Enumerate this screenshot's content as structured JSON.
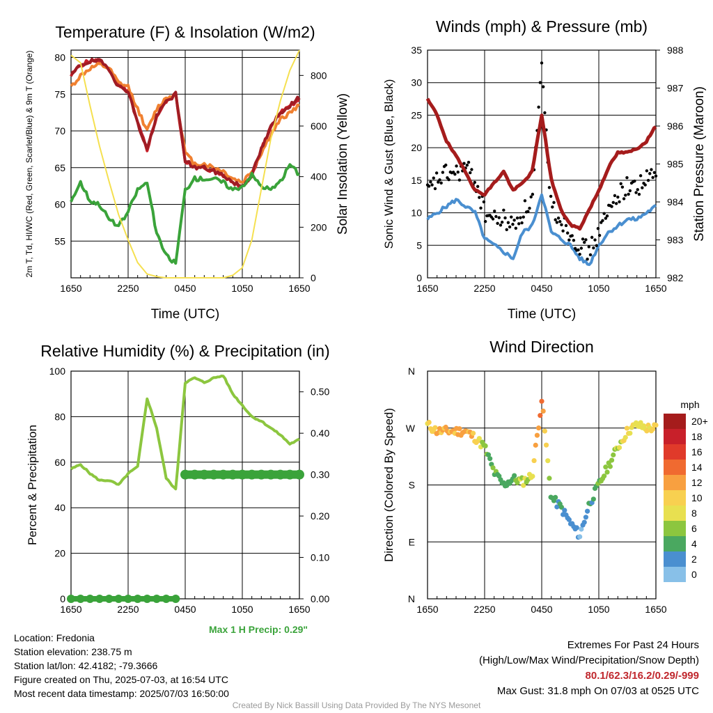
{
  "chart_data": [
    {
      "type": "line",
      "title": "Temperature (F) & Insolation (W/m2)",
      "xlabel": "Time (UTC)",
      "ylabel_left": "2m T, Td, HI/WC (Red, Green, Scarlet/Blue) & 9m T (Orange)",
      "ylabel_right": "Solar Insolation (Yellow)",
      "x_ticks": [
        "1650",
        "2250",
        "0450",
        "1050",
        "1650"
      ],
      "ylim": [
        50,
        81
      ],
      "y_ticks": [
        55,
        60,
        65,
        70,
        75,
        80
      ],
      "y2lim": [
        0,
        900
      ],
      "y2_ticks": [
        0,
        200,
        400,
        600,
        800
      ],
      "x": [
        0,
        1,
        2,
        3,
        4,
        5,
        6,
        7,
        8,
        9,
        10,
        11,
        12,
        13,
        14,
        15,
        16,
        17,
        18,
        19,
        20,
        21,
        22,
        23,
        24
      ],
      "series": [
        {
          "name": "2m T",
          "color": "#c8202a",
          "axis": "left",
          "values": [
            77.5,
            79.0,
            79.5,
            79.5,
            78.5,
            76.0,
            75.5,
            71.0,
            67.5,
            72.0,
            74.0,
            75.0,
            66.0,
            65.0,
            65.0,
            64.5,
            64.0,
            63.0,
            62.5,
            64.0,
            67.5,
            70.5,
            72.5,
            73.5,
            74.0
          ]
        },
        {
          "name": "9m T",
          "color": "#f08030",
          "axis": "left",
          "values": [
            76.0,
            77.5,
            78.5,
            79.0,
            78.5,
            76.5,
            76.0,
            73.0,
            70.0,
            73.0,
            74.5,
            75.0,
            67.0,
            65.5,
            65.5,
            65.0,
            64.5,
            63.5,
            63.0,
            64.5,
            67.0,
            69.5,
            71.5,
            72.5,
            73.5
          ]
        },
        {
          "name": "HI/WC",
          "color": "#a01c24",
          "axis": "left",
          "values": [
            77.5,
            79.0,
            79.5,
            79.5,
            78.5,
            76.0,
            75.5,
            71.0,
            67.5,
            72.0,
            74.0,
            75.0,
            66.0,
            65.0,
            65.0,
            64.5,
            64.0,
            63.0,
            62.5,
            64.0,
            67.5,
            70.5,
            72.5,
            73.5,
            74.5
          ]
        },
        {
          "name": "Td",
          "color": "#3aa33a",
          "axis": "left",
          "values": [
            60.5,
            63.0,
            60.5,
            60.0,
            58.0,
            57.0,
            59.0,
            62.0,
            63.0,
            56.0,
            53.0,
            52.0,
            62.0,
            63.5,
            63.5,
            63.5,
            63.0,
            62.0,
            62.5,
            64.0,
            62.5,
            62.0,
            63.0,
            65.5,
            64.0
          ]
        },
        {
          "name": "Solar Insolation",
          "color": "#f5e050",
          "axis": "right",
          "values": [
            880,
            850,
            680,
            520,
            380,
            250,
            150,
            60,
            15,
            5,
            0,
            0,
            0,
            0,
            0,
            0,
            0,
            10,
            40,
            150,
            350,
            550,
            700,
            820,
            900
          ]
        }
      ]
    },
    {
      "type": "line",
      "title": "Winds (mph) & Pressure (mb)",
      "xlabel": "Time (UTC)",
      "ylabel_left": "Sonic Wind & Gust (Blue, Black)",
      "ylabel_right": "Station Pressure (Maroon)",
      "x_ticks": [
        "1650",
        "2250",
        "0450",
        "1050",
        "1650"
      ],
      "ylim": [
        0,
        35
      ],
      "y_ticks": [
        0,
        5,
        10,
        15,
        20,
        25,
        30,
        35
      ],
      "y2lim": [
        982,
        988
      ],
      "y2_ticks": [
        982,
        983,
        984,
        985,
        986,
        987,
        988
      ],
      "x": [
        0,
        1,
        2,
        3,
        4,
        5,
        6,
        7,
        8,
        9,
        10,
        11,
        12,
        13,
        14,
        15,
        16,
        17,
        18,
        19,
        20,
        21,
        22,
        23,
        24
      ],
      "series": [
        {
          "name": "Sonic Wind",
          "color": "#4a8fd0",
          "axis": "left",
          "values": [
            9,
            10,
            11,
            12,
            11,
            10,
            6,
            5,
            4,
            3,
            7,
            8,
            13,
            7,
            6,
            5,
            3,
            2,
            5,
            7,
            8,
            9,
            9,
            10,
            11
          ]
        },
        {
          "name": "Gust",
          "color": "#000000",
          "axis": "left",
          "values": [
            13,
            15,
            16,
            16,
            17,
            15,
            10,
            9,
            9,
            8,
            10,
            12,
            31.8,
            11,
            9,
            7,
            5,
            4,
            7,
            10,
            13,
            14,
            14,
            15,
            16
          ]
        },
        {
          "name": "Station Pressure",
          "color": "#a51c1c",
          "axis": "right",
          "values": [
            986.7,
            986.3,
            985.6,
            985.2,
            984.8,
            984.3,
            984.2,
            984.5,
            984.8,
            984.3,
            984.5,
            984.8,
            986.3,
            984.6,
            983.8,
            983.4,
            983.3,
            983.8,
            984.3,
            984.9,
            985.3,
            985.3,
            985.4,
            985.6,
            986.0
          ]
        }
      ]
    },
    {
      "type": "line",
      "title": "Relative Humidity (%) & Precipitation (in)",
      "xlabel": "",
      "ylabel_left": "Percent & Precipitation",
      "x_ticks": [
        "1650",
        "2250",
        "0450",
        "1050",
        "1650"
      ],
      "ylim": [
        0,
        100
      ],
      "y_ticks": [
        0,
        20,
        40,
        60,
        80,
        100
      ],
      "y2lim": [
        0,
        0.55
      ],
      "y2_ticks": [
        "0.00",
        "0.10",
        "0.20",
        "0.30",
        "0.40",
        "0.50"
      ],
      "x": [
        0,
        1,
        2,
        3,
        4,
        5,
        6,
        7,
        8,
        9,
        10,
        11,
        12,
        13,
        14,
        15,
        16,
        17,
        18,
        19,
        20,
        21,
        22,
        23,
        24
      ],
      "series": [
        {
          "name": "Relative Humidity",
          "color": "#8cc63f",
          "axis": "left",
          "values": [
            57,
            59,
            55,
            52,
            52,
            50,
            55,
            58,
            88,
            75,
            53,
            48,
            95,
            97,
            95,
            97,
            98,
            90,
            85,
            80,
            78,
            75,
            72,
            68,
            70
          ]
        },
        {
          "name": "Precipitation",
          "color": "#3aa33a",
          "axis": "right",
          "values": [
            0,
            0,
            0,
            0,
            0,
            0,
            0,
            0,
            0,
            0,
            0,
            0,
            0.3,
            0.3,
            0.3,
            0.3,
            0.3,
            0.3,
            0.3,
            0.3,
            0.3,
            0.3,
            0.3,
            0.3,
            0.3
          ]
        }
      ],
      "annotation": "Max 1 H Precip: 0.29\""
    },
    {
      "type": "scatter",
      "title": "Wind Direction",
      "ylabel_left": "Direction (Colored By Speed)",
      "x_ticks": [
        "1650",
        "2250",
        "0450",
        "1050",
        "1650"
      ],
      "y_ticks": [
        "N",
        "E",
        "S",
        "W",
        "N"
      ],
      "ylim": [
        0,
        360
      ],
      "colorbar": {
        "title": "mph",
        "labels": [
          "20+",
          "18",
          "16",
          "14",
          "12",
          "10",
          "8",
          "6",
          "4",
          "2",
          "0"
        ],
        "colors": [
          "#a51c1c",
          "#c8202a",
          "#e03a2a",
          "#f06a30",
          "#f8a040",
          "#f8d050",
          "#e8e050",
          "#8cc63f",
          "#4aa860",
          "#4a8fd0",
          "#88c0e8",
          "#c8e8f8"
        ]
      },
      "x": [
        0,
        1,
        2,
        3,
        4,
        5,
        6,
        7,
        8,
        9,
        10,
        11,
        12,
        13,
        14,
        15,
        16,
        17,
        18,
        19,
        20,
        21,
        22,
        23,
        24
      ],
      "values": [
        275,
        265,
        265,
        265,
        265,
        255,
        240,
        200,
        180,
        190,
        185,
        195,
        315,
        160,
        145,
        120,
        100,
        150,
        180,
        210,
        240,
        265,
        275,
        270,
        270
      ],
      "speeds": [
        9,
        11,
        12,
        11,
        12,
        10,
        6,
        5,
        4,
        4,
        7,
        8,
        14,
        4,
        3,
        2,
        1,
        3,
        5,
        6,
        7,
        9,
        8,
        9,
        10
      ]
    }
  ],
  "info": {
    "location": "Location: Fredonia",
    "elevation": "Station elevation: 238.75 m",
    "latlon": "Station lat/lon: 42.4182; -79.3666",
    "created": "Figure created on Thu, 2025-07-03, at 16:54 UTC",
    "recent": "Most recent data timestamp: 2025/07/03 16:50:00"
  },
  "extremes": {
    "title": "Extremes For Past 24 Hours",
    "subtitle": "(High/Low/Max Wind/Precipitation/Snow Depth)",
    "values": "80.1/62.3/16.2/0.29/-999",
    "max_gust": "Max Gust: 31.8 mph On 07/03 at 0525 UTC"
  },
  "credit": "Created By Nick Bassill Using Data Provided By The NYS Mesonet"
}
